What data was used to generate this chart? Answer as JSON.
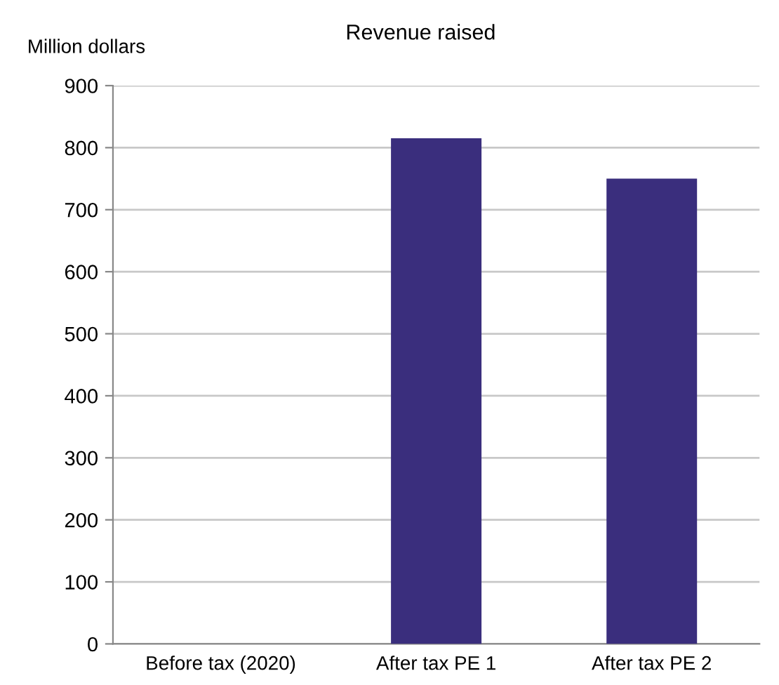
{
  "chart_data": {
    "type": "bar",
    "title": "Revenue raised",
    "ylabel": "Million dollars",
    "categories": [
      "Before tax (2020)",
      "After tax PE 1",
      "After tax PE 2"
    ],
    "values": [
      0,
      815,
      750
    ],
    "color": "#3a2e7d",
    "ylim": [
      0,
      900
    ],
    "yticks": [
      0,
      100,
      200,
      300,
      400,
      500,
      600,
      700,
      800,
      900
    ],
    "grid": "y"
  }
}
